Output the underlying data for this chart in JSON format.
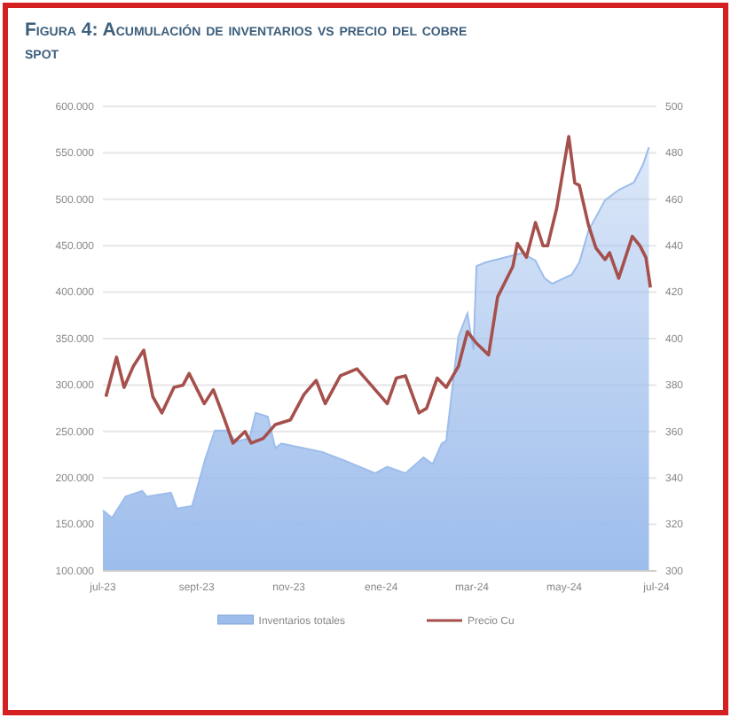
{
  "chart_data": {
    "type": "area",
    "title": "Figura 4: Acumulación de inventarios vs precio del cobre spot",
    "xlim": [
      "2023-07-01",
      "2024-07-01"
    ],
    "xticks": [
      {
        "value": "2023-07-01",
        "label": "jul-23"
      },
      {
        "value": "2023-09-01",
        "label": "sept-23"
      },
      {
        "value": "2023-11-01",
        "label": "nov-23"
      },
      {
        "value": "2024-01-01",
        "label": "ene-24"
      },
      {
        "value": "2024-03-01",
        "label": "mar-24"
      },
      {
        "value": "2024-05-01",
        "label": "may-24"
      },
      {
        "value": "2024-07-01",
        "label": "jul-24"
      }
    ],
    "ylim": [
      100000,
      600000
    ],
    "yticks": [
      {
        "value": 100000,
        "label": "100.000"
      },
      {
        "value": 150000,
        "label": "150.000"
      },
      {
        "value": 200000,
        "label": "200.000"
      },
      {
        "value": 250000,
        "label": "250.000"
      },
      {
        "value": 300000,
        "label": "300.000"
      },
      {
        "value": 350000,
        "label": "350.000"
      },
      {
        "value": 400000,
        "label": "400.000"
      },
      {
        "value": 450000,
        "label": "450.000"
      },
      {
        "value": 500000,
        "label": "500.000"
      },
      {
        "value": 550000,
        "label": "550.000"
      },
      {
        "value": 600000,
        "label": "600.000"
      }
    ],
    "y2lim": [
      300,
      500
    ],
    "y2ticks": [
      300,
      320,
      340,
      360,
      380,
      400,
      420,
      440,
      460,
      480,
      500
    ],
    "grid": "y",
    "legend": "bottom",
    "series": [
      {
        "name": "Inventarios totales",
        "color": "#9dbdec",
        "x": [
          "2023-07-01",
          "2023-07-07",
          "2023-07-16",
          "2023-07-27",
          "2023-07-30",
          "2023-08-15",
          "2023-08-19",
          "2023-08-29",
          "2023-09-07",
          "2023-09-13",
          "2023-09-21",
          "2023-09-27",
          "2023-10-06",
          "2023-10-10",
          "2023-10-18",
          "2023-10-23",
          "2023-10-27",
          "2023-11-23",
          "2023-12-09",
          "2023-12-28",
          "2024-01-05",
          "2024-01-17",
          "2024-01-29",
          "2024-02-04",
          "2024-02-10",
          "2024-02-13",
          "2024-02-21",
          "2024-02-27",
          "2024-03-02",
          "2024-03-04",
          "2024-03-10",
          "2024-04-03",
          "2024-04-12",
          "2024-04-18",
          "2024-04-23",
          "2024-05-06",
          "2024-05-11",
          "2024-05-17",
          "2024-05-28",
          "2024-06-06",
          "2024-06-16",
          "2024-06-22",
          "2024-06-26"
        ],
        "values": [
          165000,
          157000,
          180000,
          186000,
          180000,
          184000,
          167000,
          170000,
          222000,
          251000,
          251000,
          239000,
          243000,
          270000,
          266000,
          232000,
          237000,
          228000,
          218000,
          205000,
          212000,
          205000,
          222000,
          215000,
          237000,
          240000,
          352000,
          377000,
          338000,
          428000,
          432000,
          442000,
          434000,
          415000,
          409000,
          419000,
          432000,
          466000,
          499000,
          510000,
          518000,
          537000,
          556000
        ]
      },
      {
        "name": "Precio Cu",
        "type": "line",
        "axis": "y2",
        "color": "#a5504c",
        "x": [
          "2023-07-03",
          "2023-07-10",
          "2023-07-15",
          "2023-07-21",
          "2023-07-28",
          "2023-08-03",
          "2023-08-09",
          "2023-08-17",
          "2023-08-23",
          "2023-08-27",
          "2023-09-06",
          "2023-09-12",
          "2023-09-19",
          "2023-09-25",
          "2023-10-03",
          "2023-10-07",
          "2023-10-15",
          "2023-10-23",
          "2023-11-02",
          "2023-11-11",
          "2023-11-19",
          "2023-11-25",
          "2023-12-05",
          "2023-12-16",
          "2023-12-28",
          "2024-01-05",
          "2024-01-11",
          "2024-01-17",
          "2024-01-26",
          "2024-01-31",
          "2024-02-07",
          "2024-02-13",
          "2024-02-21",
          "2024-02-27",
          "2024-03-04",
          "2024-03-12",
          "2024-03-18",
          "2024-03-28",
          "2024-03-31",
          "2024-04-06",
          "2024-04-12",
          "2024-04-17",
          "2024-04-20",
          "2024-04-26",
          "2024-05-04",
          "2024-05-08",
          "2024-05-11",
          "2024-05-17",
          "2024-05-22",
          "2024-05-28",
          "2024-05-31",
          "2024-06-06",
          "2024-06-15",
          "2024-06-20",
          "2024-06-24",
          "2024-06-27"
        ],
        "values": [
          375,
          392,
          379,
          388,
          395,
          375,
          368,
          379,
          380,
          385,
          372,
          378,
          366,
          355,
          360,
          355,
          357,
          363,
          365,
          376,
          382,
          372,
          384,
          387,
          378,
          372,
          383,
          384,
          368,
          370,
          383,
          379,
          388,
          403,
          398,
          393,
          418,
          431,
          441,
          435,
          450,
          440,
          440,
          456,
          487,
          467,
          466,
          449,
          439,
          434,
          437,
          426,
          444,
          440,
          435,
          422
        ]
      }
    ]
  }
}
